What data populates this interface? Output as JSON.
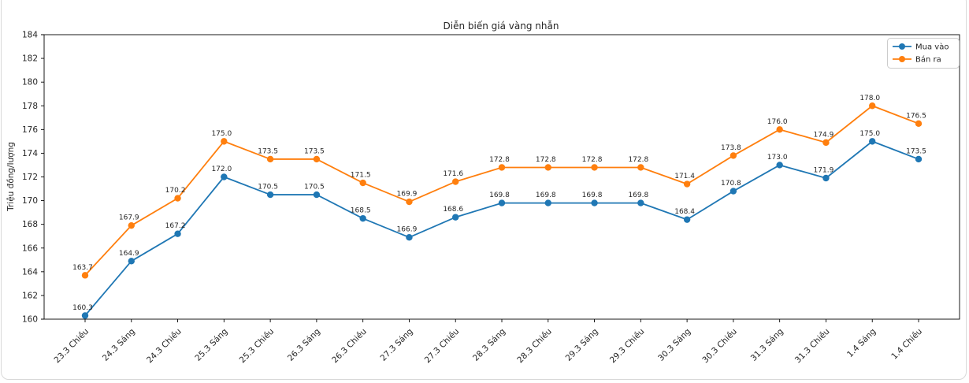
{
  "chart_data": {
    "type": "line",
    "title": "Diễn biến giá vàng nhẫn",
    "xlabel": "",
    "ylabel": "Triệu đồng/lượng",
    "ylim": [
      160,
      184
    ],
    "ytick_step": 2,
    "grid": false,
    "legend_position": "top-right",
    "point_labels": true,
    "label_decimals": 1,
    "categories": [
      "23.3 Chiều",
      "24.3 Sáng",
      "24.3 Chiều",
      "25.3 Sáng",
      "25.3 Chiều",
      "26.3 Sáng",
      "26.3 Chiều",
      "27.3 Sáng",
      "27.3 Chiều",
      "28.3 Sáng",
      "28.3 Chiều",
      "29.3 Sáng",
      "29.3 Chiều",
      "30.3 Sáng",
      "30.3 Chiều",
      "31.3 Sáng",
      "31.3 Chiều",
      "1.4 Sáng",
      "1.4 Chiều"
    ],
    "series": [
      {
        "name": "Mua vào",
        "color": "#1f77b4",
        "values": [
          160.3,
          164.9,
          167.2,
          172.0,
          170.5,
          170.5,
          168.5,
          166.9,
          168.6,
          169.8,
          169.8,
          169.8,
          169.8,
          168.4,
          170.8,
          173.0,
          171.9,
          175.0,
          173.5
        ]
      },
      {
        "name": "Bán ra",
        "color": "#ff7f0e",
        "values": [
          163.7,
          167.9,
          170.2,
          175.0,
          173.5,
          173.5,
          171.5,
          169.9,
          171.6,
          172.8,
          172.8,
          172.8,
          172.8,
          171.4,
          173.8,
          176.0,
          174.9,
          178.0,
          176.5
        ]
      }
    ],
    "colors": {
      "axis": "#000000",
      "text": "#262626",
      "card_border": "#d9d9d9",
      "background": "#ffffff",
      "legend_border": "#cccccc"
    }
  }
}
